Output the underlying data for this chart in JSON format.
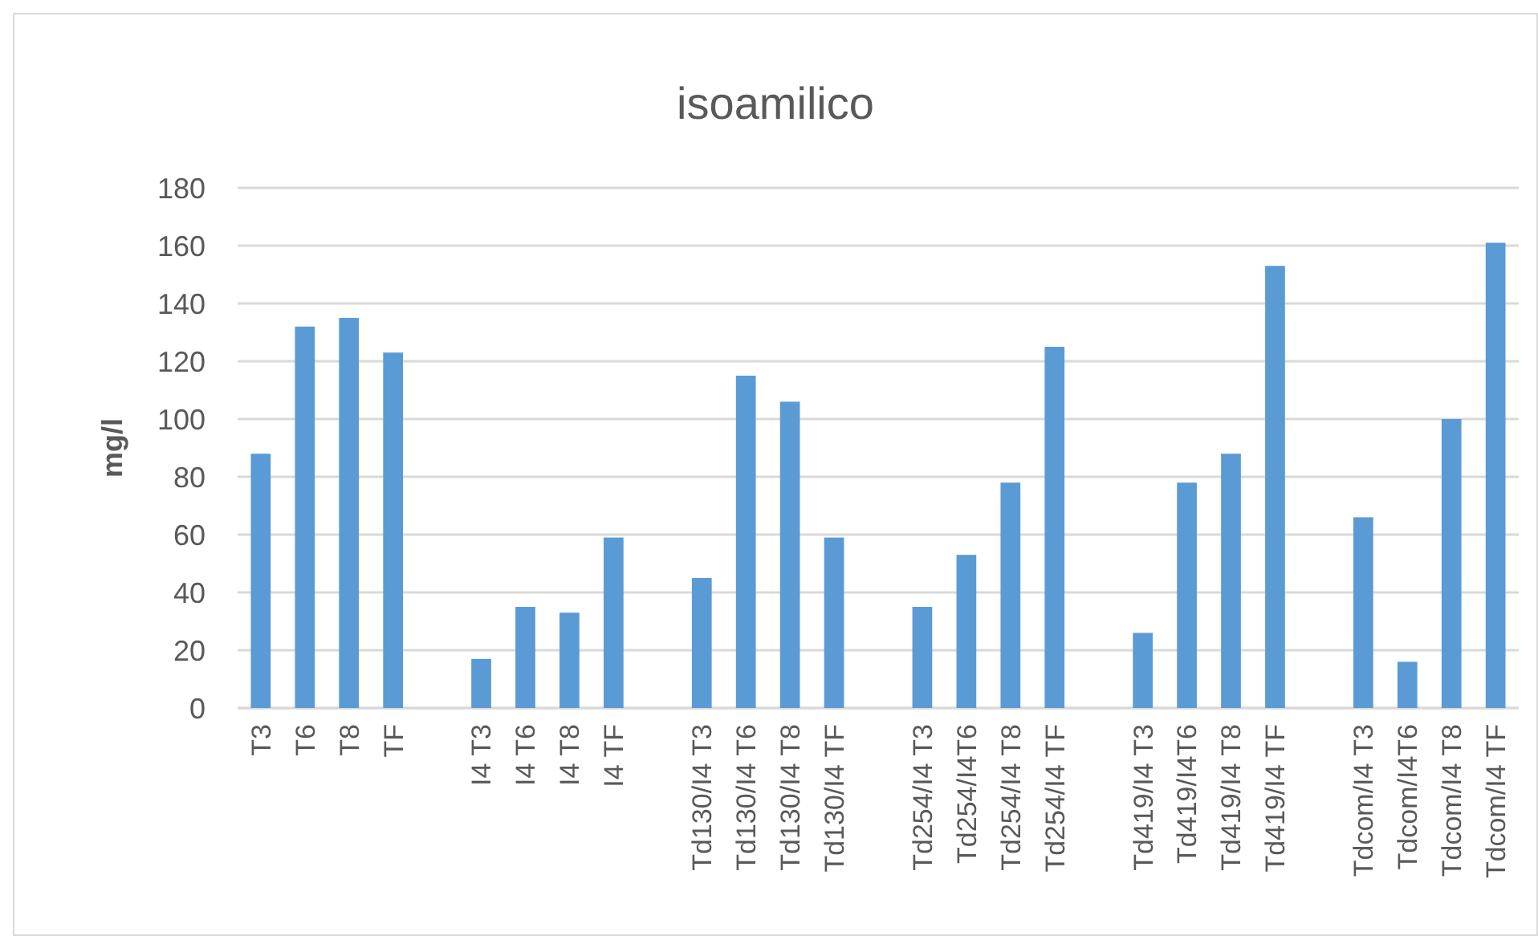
{
  "chart_data": {
    "type": "bar",
    "title": "isoamilico",
    "ylabel": "mg/l",
    "categories": [
      "T3",
      "T6",
      "T8",
      "TF",
      null,
      "I4 T3",
      "I4 T6",
      "I4 T8",
      "I4 TF",
      null,
      "Td130/I4 T3",
      "Td130/I4 T6",
      "Td130/I4 T8",
      "Td130/I4 TF",
      null,
      "Td254/I4 T3",
      "Td254/I4T6",
      "Td254/I4 T8",
      "Td254/I4 TF",
      null,
      "Td419/I4 T3",
      "Td419/I4T6",
      "Td419/I4 T8",
      "Td419/I4 TF",
      null,
      "Tdcom/I4 T3",
      "Tdcom/I4T6",
      "Tdcom/I4 T8",
      "Tdcom/I4 TF"
    ],
    "values": [
      88,
      132,
      135,
      123,
      null,
      17,
      35,
      33,
      59,
      null,
      45,
      115,
      106,
      59,
      null,
      35,
      53,
      78,
      125,
      null,
      26,
      78,
      88,
      153,
      null,
      66,
      16,
      100,
      161
    ],
    "color": "#5b9bd5",
    "ylim": [
      0,
      180
    ],
    "yticks": [
      0,
      20,
      40,
      60,
      80,
      100,
      120,
      140,
      160,
      180
    ],
    "grid": "y"
  }
}
